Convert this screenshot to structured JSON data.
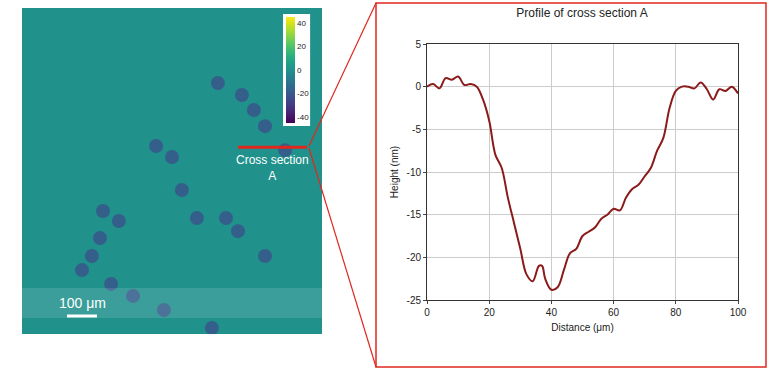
{
  "chart_data": [
    {
      "type": "heatmap",
      "background": 0,
      "points": {
        "x": [
          653,
          733,
          773,
          810,
          877,
          447,
          500,
          533,
          583,
          680,
          720,
          810,
          270,
          323,
          260,
          233,
          200,
          297,
          370,
          473,
          633
        ],
        "y": [
          837,
          797,
          747,
          693,
          613,
          627,
          590,
          480,
          387,
          387,
          343,
          260,
          410,
          377,
          320,
          260,
          213,
          167,
          127,
          80,
          20
        ],
        "values": [
          -22,
          -22,
          -22,
          -22,
          -22,
          -22,
          -22,
          -22,
          -22,
          -22,
          -22,
          -22,
          -22,
          -22,
          -22,
          -22,
          -22,
          -22,
          -22,
          -22,
          -22
        ]
      },
      "xlim": [
        0,
        1000
      ],
      "ylim": [
        0,
        1087
      ],
      "tick_labels": false,
      "colorbar": {
        "range": [
          -45,
          45
        ],
        "ticks": [
          40,
          20,
          0,
          -20,
          -40
        ]
      },
      "scale_bar": {
        "value": 100,
        "label": "100 μm"
      },
      "cross_section": {
        "label": "Cross section A",
        "x": [
          720,
          950
        ],
        "y": 623
      }
    },
    {
      "type": "line",
      "title": "Profile of cross section A",
      "x_label": "Distance (μm)",
      "y_label": "Height (nm)",
      "x": [
        0,
        2,
        4,
        6,
        8,
        10,
        12,
        14,
        16,
        18,
        20,
        22,
        24,
        26,
        28,
        30,
        32,
        34,
        36,
        37,
        38,
        40,
        42,
        44,
        46,
        48,
        50,
        52,
        54,
        56,
        58,
        60,
        62,
        64,
        66,
        68,
        70,
        72,
        74,
        76,
        78,
        80,
        82,
        84,
        86,
        88,
        90,
        92,
        94,
        96,
        98,
        100
      ],
      "values": [
        0,
        0.3,
        -0.2,
        1.0,
        0.8,
        1.2,
        0.2,
        0.3,
        0,
        -1.5,
        -4,
        -8,
        -9.5,
        -13,
        -16,
        -19,
        -22,
        -22.8,
        -21,
        -21,
        -22.5,
        -23.8,
        -23.5,
        -21.5,
        -19.5,
        -19,
        -17.5,
        -17,
        -16.5,
        -15.5,
        -15,
        -14.3,
        -14.5,
        -13,
        -12,
        -11.5,
        -10.5,
        -9.5,
        -7.5,
        -6,
        -2.5,
        -0.5,
        0,
        0,
        -0.2,
        0.5,
        -0.3,
        -1.5,
        -0.3,
        -0.5,
        0,
        -0.8
      ],
      "color": "#8b1a1a",
      "line_style": "solid",
      "xlim": [
        0,
        100
      ],
      "ylim": [
        -25,
        5
      ],
      "xticks": [
        0,
        20,
        40,
        60,
        80,
        100
      ],
      "yticks": [
        5,
        0,
        -5,
        -10,
        -15,
        -20,
        -25
      ],
      "grid": true
    }
  ]
}
